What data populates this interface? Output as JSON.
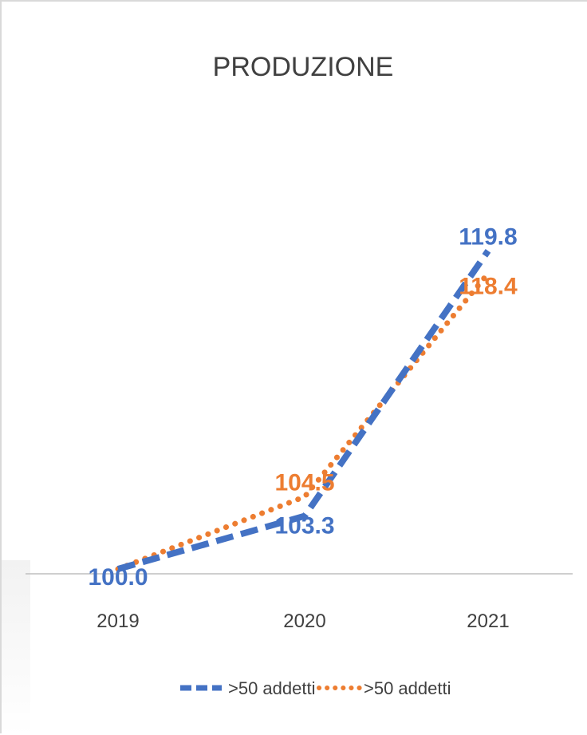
{
  "chart_data": {
    "type": "line",
    "title": "PRODUZIONE",
    "categories": [
      "2019",
      "2020",
      "2021"
    ],
    "ylim": [
      100,
      122
    ],
    "grid": false,
    "legend_position": "bottom",
    "series": [
      {
        "name": ">50 addetti",
        "values": [
          100.0,
          103.3,
          119.8
        ],
        "labels": [
          "100.0",
          "103.3",
          "119.8"
        ],
        "color": "#4472c4",
        "line_style": "dashed"
      },
      {
        "name": ">50 addetti",
        "values": [
          100.0,
          104.5,
          118.4
        ],
        "labels": [
          "",
          "104.5",
          "118.4"
        ],
        "color": "#ed7d31",
        "line_style": "dotted"
      }
    ]
  }
}
